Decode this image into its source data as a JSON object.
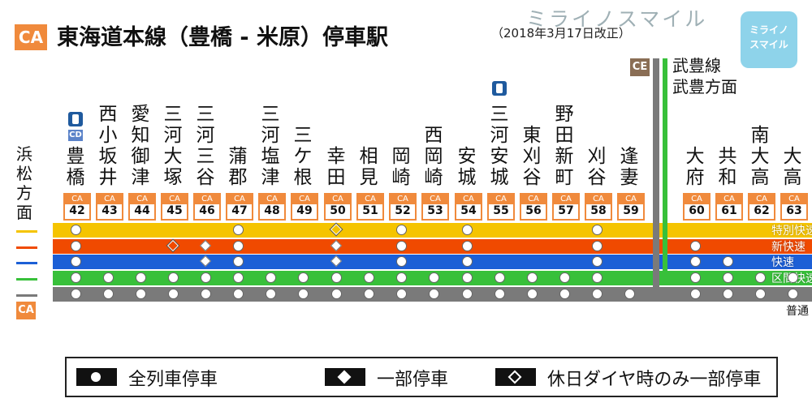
{
  "header": {
    "badge": "CA",
    "title": "東海道本線（豊橋 - 米原）停車駅",
    "date_note": "（2018年3月17日改正）",
    "logo_text": "ミライノスマイル",
    "logo_box": [
      "ミライノ",
      "スマイル"
    ]
  },
  "side_label": "浜松方面",
  "side_badge": "CA",
  "branch": {
    "badge": "CE",
    "label_line1": "武豊線",
    "label_line2": "武豊方面"
  },
  "stations": [
    {
      "name": "豊橋",
      "code": "42",
      "cd": "CD",
      "icon": "ic-card-icon"
    },
    {
      "name": "西小坂井",
      "code": "43"
    },
    {
      "name": "愛知御津",
      "code": "44"
    },
    {
      "name": "三河大塚",
      "code": "45"
    },
    {
      "name": "三河三谷",
      "code": "46"
    },
    {
      "name": "蒲郡",
      "code": "47"
    },
    {
      "name": "三河塩津",
      "code": "48"
    },
    {
      "name": "三ケ根",
      "code": "49"
    },
    {
      "name": "幸田",
      "code": "50"
    },
    {
      "name": "相見",
      "code": "51"
    },
    {
      "name": "岡崎",
      "code": "52"
    },
    {
      "name": "西岡崎",
      "code": "53"
    },
    {
      "name": "安城",
      "code": "54"
    },
    {
      "name": "三河安城",
      "code": "55",
      "icon": "ic-card-icon"
    },
    {
      "name": "東刈谷",
      "code": "56"
    },
    {
      "name": "野田新町",
      "code": "57"
    },
    {
      "name": "刈谷",
      "code": "58"
    },
    {
      "name": "逢妻",
      "code": "59"
    },
    {
      "name": "大府",
      "code": "60"
    },
    {
      "name": "共和",
      "code": "61"
    },
    {
      "name": "南大高",
      "code": "62"
    },
    {
      "name": "大高",
      "code": "63"
    }
  ],
  "code_prefix": "CA",
  "lines": [
    {
      "name": "特別快速",
      "color": "#f5c400",
      "stops": {
        "0": "c",
        "5": "c",
        "8": "d_open",
        "10": "c",
        "12": "c",
        "16": "c"
      }
    },
    {
      "name": "新快速",
      "color": "#f04a00",
      "stops": {
        "0": "c",
        "3": "d_open",
        "4": "d_fill",
        "5": "c",
        "8": "d_fill",
        "10": "c",
        "12": "c",
        "16": "c",
        "18": "c"
      }
    },
    {
      "name": "快速",
      "color": "#1c5fd6",
      "stops": {
        "0": "c",
        "4": "d_fill",
        "5": "c",
        "8": "d_fill",
        "10": "c",
        "12": "c",
        "16": "c",
        "18": "c",
        "19": "c"
      }
    },
    {
      "name": "区間快速",
      "color": "#38c03a",
      "stops": {
        "0": "c",
        "1": "c",
        "2": "c",
        "3": "c",
        "4": "c",
        "5": "c",
        "6": "c",
        "7": "c",
        "8": "c",
        "9": "c",
        "10": "c",
        "11": "c",
        "12": "c",
        "13": "c",
        "14": "c",
        "15": "c",
        "16": "c",
        "18": "c",
        "19": "c",
        "20": "c",
        "21": "c"
      }
    },
    {
      "name": "普通",
      "color": "#7a7a7a",
      "stops": {
        "0": "c",
        "1": "c",
        "2": "c",
        "3": "c",
        "4": "c",
        "5": "c",
        "6": "c",
        "7": "c",
        "8": "c",
        "9": "c",
        "10": "c",
        "11": "c",
        "12": "c",
        "13": "c",
        "14": "c",
        "15": "c",
        "16": "c",
        "17": "c",
        "18": "c",
        "19": "c",
        "20": "c",
        "21": "c"
      }
    }
  ],
  "legend": [
    {
      "label": "全列車停車",
      "symbol": "circle"
    },
    {
      "label": "一部停車",
      "symbol": "diamond-filled"
    },
    {
      "label": "休日ダイヤ時のみ一部停車",
      "symbol": "diamond-open"
    }
  ]
}
